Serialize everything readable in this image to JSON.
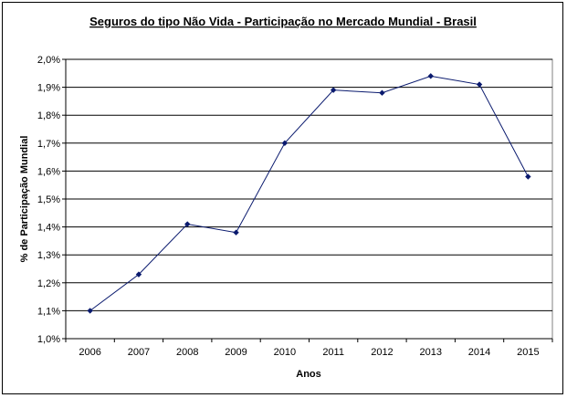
{
  "chart_data": {
    "type": "line",
    "title": "Seguros do tipo Não Vida - Participação no Mercado Mundial - Brasil",
    "xlabel": "Anos",
    "ylabel": "% de Participação Mundial",
    "categories": [
      "2006",
      "2007",
      "2008",
      "2009",
      "2010",
      "2011",
      "2012",
      "2013",
      "2014",
      "2015"
    ],
    "series": [
      {
        "name": "Brasil",
        "values": [
          1.1,
          1.23,
          1.41,
          1.38,
          1.7,
          1.89,
          1.88,
          1.94,
          1.91,
          1.58
        ]
      }
    ],
    "ylim": [
      1.0,
      2.0
    ],
    "ytick_values": [
      1.0,
      1.1,
      1.2,
      1.3,
      1.4,
      1.5,
      1.6,
      1.7,
      1.8,
      1.9,
      2.0
    ],
    "ytick_labels": [
      "1,0%",
      "1,1%",
      "1,2%",
      "1,3%",
      "1,4%",
      "1,5%",
      "1,6%",
      "1,7%",
      "1,8%",
      "1,9%",
      "2,0%"
    ],
    "grid": true,
    "colors": {
      "line": "#0a1a6e",
      "marker": "#0a1a6e",
      "grid": "#000000"
    }
  }
}
